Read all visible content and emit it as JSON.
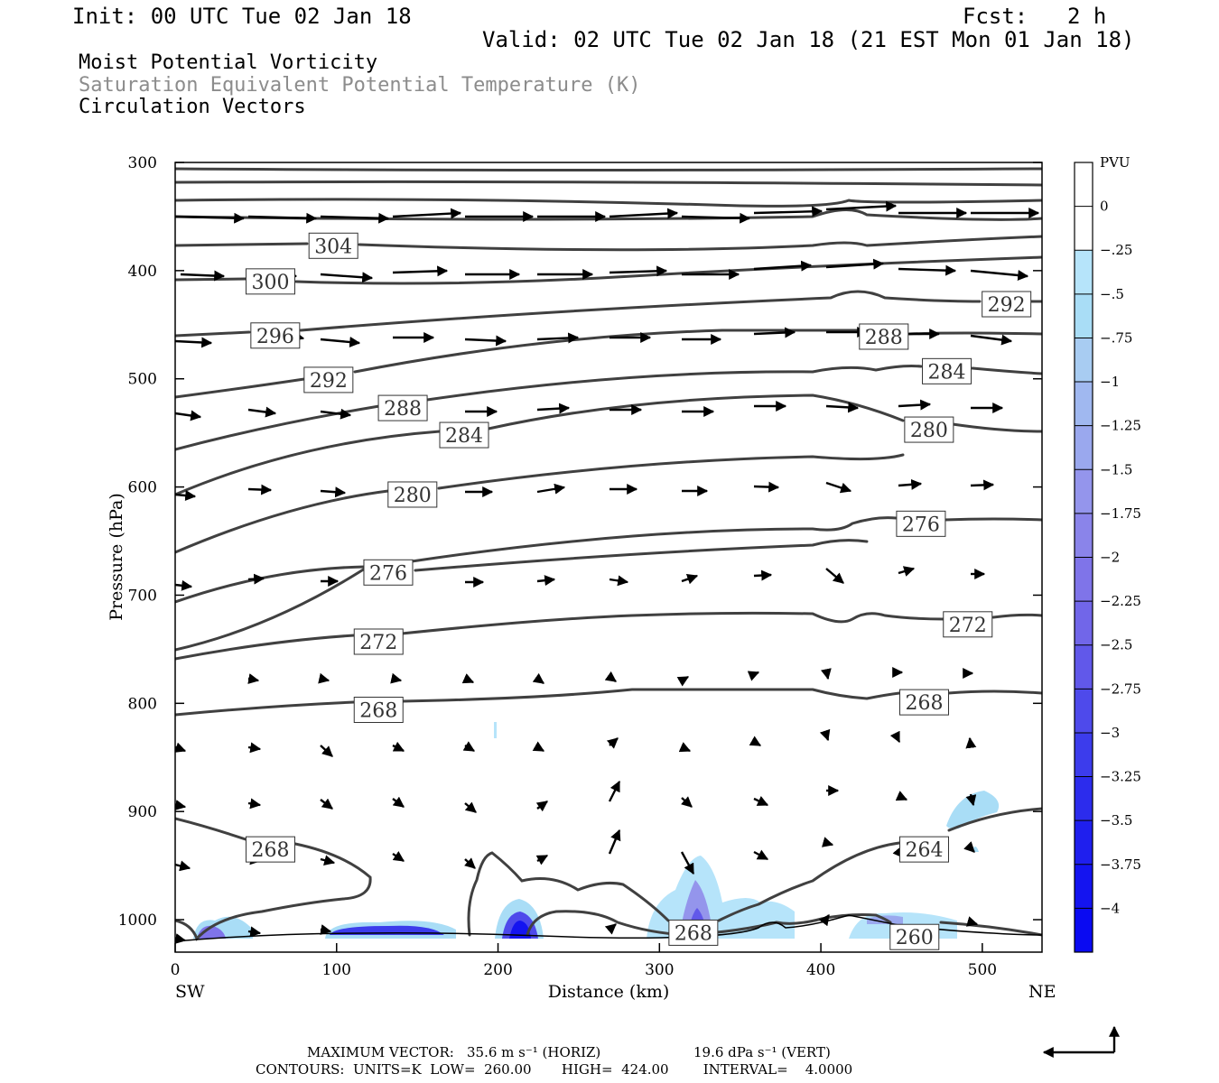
{
  "header": {
    "init": "Init: 00 UTC Tue 02 Jan 18",
    "fcst_label": "Fcst:",
    "fcst_value": "2 h",
    "valid": "Valid: 02 UTC Tue 02 Jan 18 (21 EST Mon 01 Jan 18)",
    "field_1": "Moist Potential Vorticity",
    "field_2": "Saturation Equivalent Potential Temperature (K)",
    "field_3": "Circulation Vectors"
  },
  "chart_data": {
    "type": "cross-section",
    "xlabel": "Distance (km)",
    "ylabel": "Pressure (hPa)",
    "x_ticks": [
      0,
      100,
      200,
      300,
      400,
      500
    ],
    "y_ticks": [
      300,
      400,
      500,
      600,
      700,
      800,
      900,
      1000
    ],
    "xlim": [
      0,
      537
    ],
    "ylim": [
      1030,
      300
    ],
    "endpoint_left": "SW",
    "endpoint_right": "NE",
    "colorbar": {
      "unit": "PVU",
      "labels": [
        "0",
        "-.25",
        "-.5",
        "-.75",
        "-1",
        "-1.25",
        "-1.5",
        "-1.75",
        "-2",
        "-2.25",
        "-2.5",
        "-2.75",
        "-3",
        "-3.25",
        "-3.5",
        "-3.75",
        "-4"
      ],
      "colors": [
        "#ffffff",
        "#ffffff",
        "#b6e4fa",
        "#a9ddf6",
        "#a8ccf2",
        "#a0b8f0",
        "#9aa8ee",
        "#9495ec",
        "#8a84ea",
        "#7f74e9",
        "#7166e9",
        "#6158ea",
        "#4e4aeb",
        "#3c3cec",
        "#2c2ced",
        "#1f1fee",
        "#1414f0",
        "#0a0af2"
      ]
    },
    "contour_labels": [
      {
        "text": "304",
        "x": 98,
        "p": 377
      },
      {
        "text": "300",
        "x": 59,
        "p": 410
      },
      {
        "text": "296",
        "x": 62,
        "p": 460
      },
      {
        "text": "292",
        "x": 95,
        "p": 501
      },
      {
        "text": "288",
        "x": 141,
        "p": 527
      },
      {
        "text": "284",
        "x": 179,
        "p": 552
      },
      {
        "text": "280",
        "x": 147,
        "p": 607
      },
      {
        "text": "276",
        "x": 132,
        "p": 679
      },
      {
        "text": "272",
        "x": 126,
        "p": 743
      },
      {
        "text": "268",
        "x": 126,
        "p": 806
      },
      {
        "text": "268",
        "x": 59,
        "p": 935
      },
      {
        "text": "268",
        "x": 321,
        "p": 1012
      },
      {
        "text": "292",
        "x": 515,
        "p": 431
      },
      {
        "text": "288",
        "x": 439,
        "p": 461
      },
      {
        "text": "284",
        "x": 478,
        "p": 493
      },
      {
        "text": "280",
        "x": 467,
        "p": 547
      },
      {
        "text": "276",
        "x": 462,
        "p": 634
      },
      {
        "text": "272",
        "x": 491,
        "p": 727
      },
      {
        "text": "268",
        "x": 464,
        "p": 799
      },
      {
        "text": "264",
        "x": 464,
        "p": 935
      },
      {
        "text": "260",
        "x": 458,
        "p": 1016
      }
    ],
    "max_vector_horiz": "35.6 m s⁻¹ (HORIZ)",
    "max_vector_vert": "19.6 dPa s⁻¹ (VERT)"
  },
  "footer": {
    "line1_label": "MAXIMUM VECTOR:",
    "line1_horiz": "35.6 m s⁻¹ (HORIZ)",
    "line1_vert": "19.6 dPa s⁻¹ (VERT)",
    "line2": "CONTOURS:  UNITS=K  LOW=  260.00       HIGH=  424.00        INTERVAL=    4.0000"
  }
}
